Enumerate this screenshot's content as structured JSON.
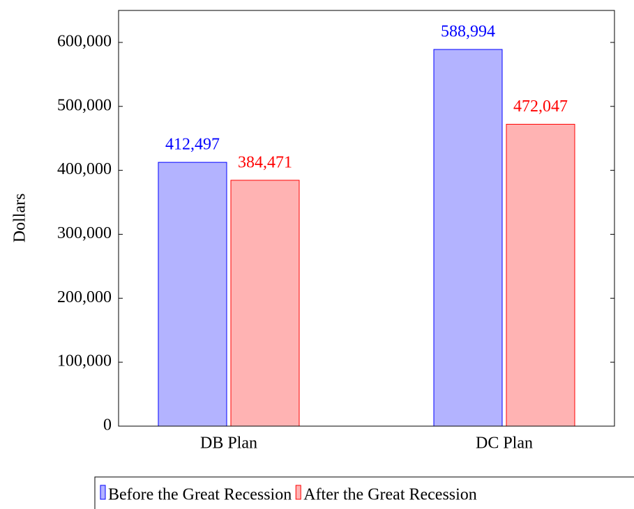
{
  "chart_data": {
    "type": "bar",
    "y_label": "Dollars",
    "categories": [
      "DB Plan",
      "DC Plan"
    ],
    "series": [
      {
        "name": "Before the Great Recession",
        "color": "#0000ff",
        "fill": "#b3b3ff",
        "values": [
          412497,
          588994
        ],
        "value_labels": [
          "412,497",
          "588,994"
        ]
      },
      {
        "name": "After the Great Recession",
        "color": "#ff0000",
        "fill": "#ffb3b3",
        "values": [
          384471,
          472047
        ],
        "value_labels": [
          "384,471",
          "472,047"
        ]
      }
    ],
    "ylim": [
      0,
      650000
    ],
    "yticks": [
      0,
      {
        "value": 100000,
        "label": "100,000"
      },
      {
        "value": 200000,
        "label": "200,000"
      },
      {
        "value": 300000,
        "label": "300,000"
      },
      {
        "value": 400000,
        "label": "400,000"
      },
      {
        "value": 500000,
        "label": "500,000"
      },
      {
        "value": 600000,
        "label": "600,000"
      }
    ],
    "legend": "bottom"
  }
}
